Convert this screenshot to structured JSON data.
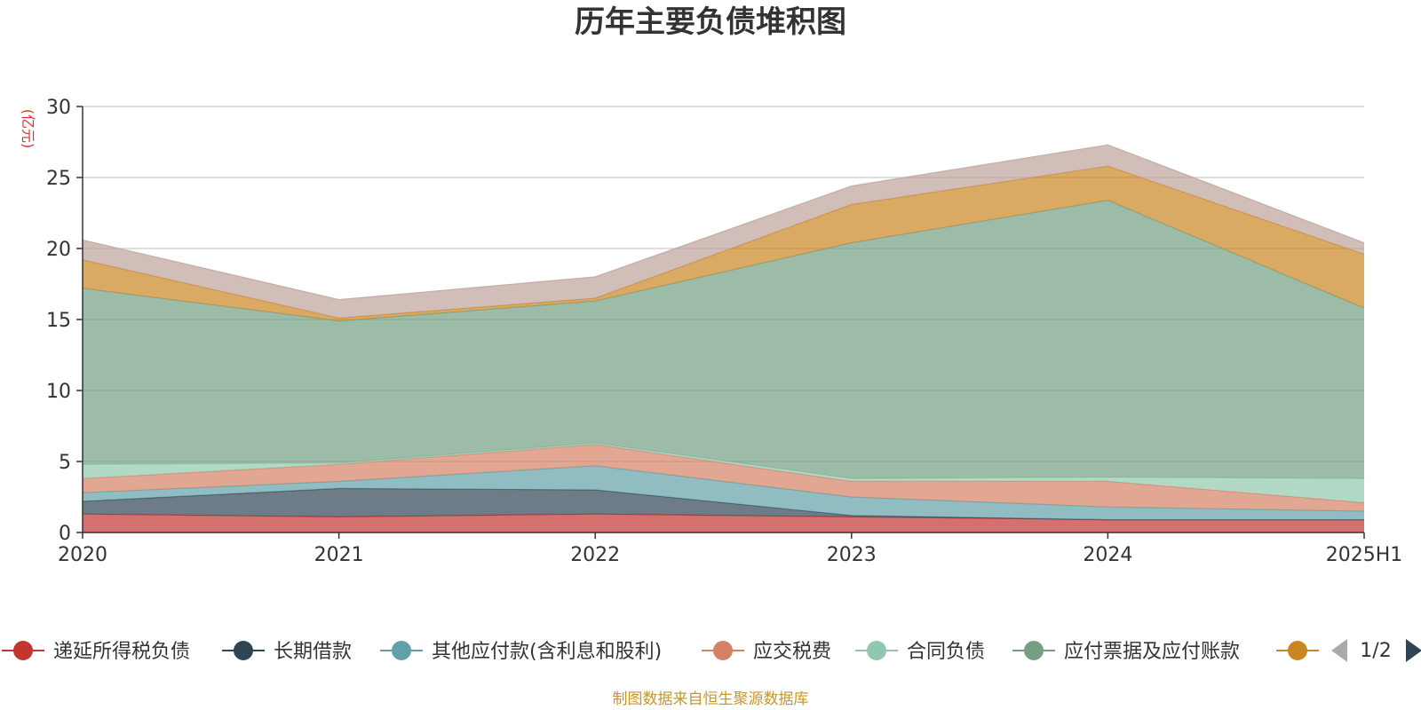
{
  "chart_data": {
    "type": "area",
    "stacked": true,
    "title": "历年主要负债堆积图",
    "ylabel": "(亿元)",
    "xlabel": "",
    "categories": [
      "2020",
      "2021",
      "2022",
      "2023",
      "2024",
      "2025H1"
    ],
    "ylim": [
      0,
      30
    ],
    "yticks": [
      0,
      5,
      10,
      15,
      20,
      25,
      30
    ],
    "grid": true,
    "legend_position": "bottom",
    "series": [
      {
        "name": "递延所得税负债",
        "color": "#c23531",
        "values": [
          1.3,
          1.1,
          1.3,
          1.1,
          0.9,
          0.9
        ]
      },
      {
        "name": "长期借款",
        "color": "#2f4554",
        "values": [
          0.9,
          2.0,
          1.7,
          0.1,
          0.0,
          0.0
        ]
      },
      {
        "name": "其他应付款(含利息和股利)",
        "color": "#61a0a8",
        "values": [
          0.6,
          0.5,
          1.7,
          1.3,
          0.9,
          0.6
        ]
      },
      {
        "name": "应交税费",
        "color": "#d48265",
        "values": [
          1.0,
          1.2,
          1.5,
          1.1,
          1.8,
          0.6
        ]
      },
      {
        "name": "合同负债",
        "color": "#91c7ae",
        "values": [
          1.0,
          0.1,
          0.1,
          0.2,
          0.3,
          1.7
        ]
      },
      {
        "name": "应付票据及应付账款",
        "color": "#749f83",
        "values": [
          12.4,
          10.0,
          10.0,
          16.6,
          19.5,
          12.0
        ]
      },
      {
        "name": "",
        "color": "#ca8622",
        "values": [
          2.0,
          0.2,
          0.2,
          2.7,
          2.4,
          3.8
        ]
      },
      {
        "name": "",
        "color": "#bda29a",
        "values": [
          1.4,
          1.3,
          1.5,
          1.3,
          1.5,
          0.8
        ]
      }
    ]
  },
  "legend": {
    "items": [
      {
        "label": "递延所得税负债",
        "color": "#c23531"
      },
      {
        "label": "长期借款",
        "color": "#2f4554"
      },
      {
        "label": "其他应付款(含利息和股利)",
        "color": "#61a0a8"
      },
      {
        "label": "应交税费",
        "color": "#d48265"
      },
      {
        "label": "合同负债",
        "color": "#91c7ae"
      },
      {
        "label": "应付票据及应付账款",
        "color": "#749f83"
      },
      {
        "label": "",
        "color": "#ca8622"
      }
    ],
    "page": "1/2"
  },
  "source_text": "制图数据来自恒生聚源数据库"
}
